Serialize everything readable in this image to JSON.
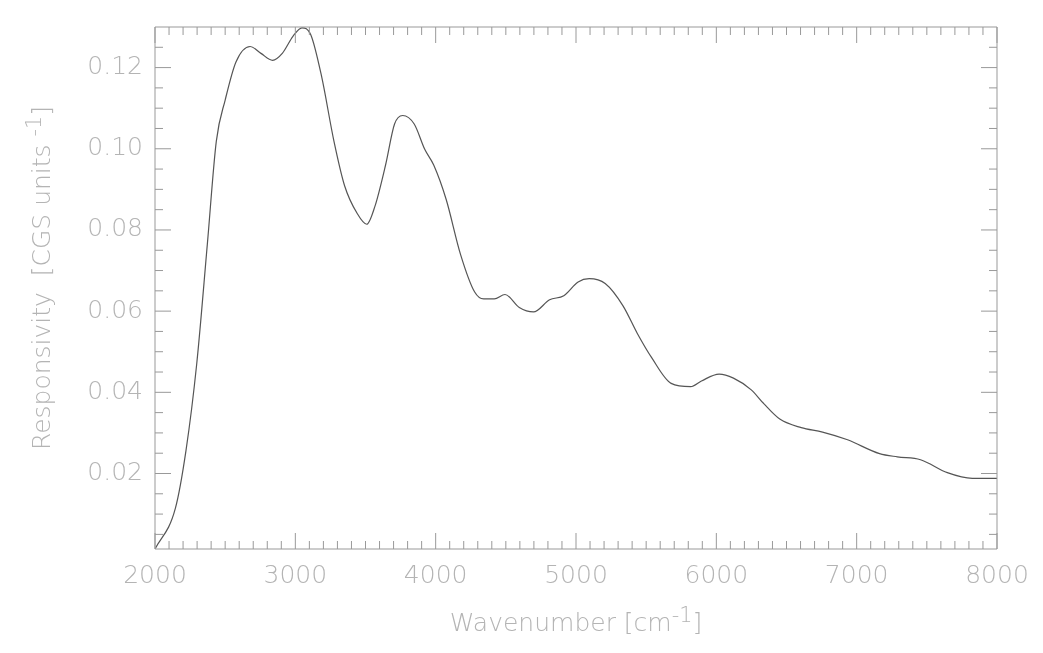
{
  "chart_data": {
    "type": "line",
    "xlabel": "Wavenumber [cm$^{-1}$]",
    "ylabel": "Responsivity  [CGS units $^{-1}$]",
    "x": [
      2000,
      2145,
      2221,
      2297,
      2373,
      2437,
      2500,
      2577,
      2678,
      2755,
      2838,
      2907,
      2983,
      3047,
      3110,
      3186,
      3275,
      3351,
      3440,
      3509,
      3567,
      3643,
      3707,
      3765,
      3847,
      3923,
      3986,
      4075,
      4177,
      4278,
      4342,
      4418,
      4494,
      4596,
      4697,
      4812,
      4913,
      5015,
      5094,
      5208,
      5335,
      5437,
      5538,
      5678,
      5817,
      5894,
      6020,
      6122,
      6249,
      6338,
      6452,
      6605,
      6757,
      6935,
      7163,
      7290,
      7455,
      7646,
      7824,
      8000
    ],
    "series": [
      {
        "color": "#555555",
        "values": [
          0.0014,
          0.0114,
          0.0257,
          0.0469,
          0.0765,
          0.1019,
          0.112,
          0.1214,
          0.1252,
          0.1235,
          0.1218,
          0.1235,
          0.1277,
          0.1298,
          0.1281,
          0.118,
          0.1019,
          0.0909,
          0.0841,
          0.0814,
          0.0858,
          0.096,
          0.1061,
          0.1082,
          0.1061,
          0.0998,
          0.096,
          0.0875,
          0.074,
          0.0647,
          0.063,
          0.063,
          0.0641,
          0.0609,
          0.0598,
          0.0628,
          0.0638,
          0.0672,
          0.068,
          0.0668,
          0.0613,
          0.0545,
          0.0486,
          0.0422,
          0.0414,
          0.0428,
          0.0445,
          0.0435,
          0.0406,
          0.0372,
          0.0334,
          0.0313,
          0.0302,
          0.0283,
          0.0249,
          0.0241,
          0.0234,
          0.0202,
          0.0188,
          0.0188
        ]
      }
    ],
    "xlim": [
      2000,
      8000
    ],
    "ylim": [
      0.0014,
      0.13
    ],
    "xticks": [
      2000,
      {
        "value": 2100,
        "label": null
      },
      {
        "value": 2200,
        "label": null
      },
      {
        "value": 2300,
        "label": null
      },
      {
        "value": 2400,
        "label": null
      },
      {
        "value": 2500,
        "label": null
      },
      {
        "value": 2600,
        "label": null
      },
      {
        "value": 2700,
        "label": null
      },
      {
        "value": 2800,
        "label": null
      },
      {
        "value": 2900,
        "label": null
      },
      3000,
      {
        "value": 3100,
        "label": null
      },
      {
        "value": 3200,
        "label": null
      },
      {
        "value": 3300,
        "label": null
      },
      {
        "value": 3400,
        "label": null
      },
      {
        "value": 3500,
        "label": null
      },
      {
        "value": 3600,
        "label": null
      },
      {
        "value": 3700,
        "label": null
      },
      {
        "value": 3800,
        "label": null
      },
      {
        "value": 3900,
        "label": null
      },
      4000,
      {
        "value": 4100,
        "label": null
      },
      {
        "value": 4200,
        "label": null
      },
      {
        "value": 4300,
        "label": null
      },
      {
        "value": 4400,
        "label": null
      },
      {
        "value": 4500,
        "label": null
      },
      {
        "value": 4600,
        "label": null
      },
      {
        "value": 4700,
        "label": null
      },
      {
        "value": 4800,
        "label": null
      },
      {
        "value": 4900,
        "label": null
      },
      5000,
      {
        "value": 5100,
        "label": null
      },
      {
        "value": 5200,
        "label": null
      },
      {
        "value": 5300,
        "label": null
      },
      {
        "value": 5400,
        "label": null
      },
      {
        "value": 5500,
        "label": null
      },
      {
        "value": 5600,
        "label": null
      },
      {
        "value": 5700,
        "label": null
      },
      {
        "value": 5800,
        "label": null
      },
      {
        "value": 5900,
        "label": null
      },
      6000,
      {
        "value": 6100,
        "label": null
      },
      {
        "value": 6200,
        "label": null
      },
      {
        "value": 6300,
        "label": null
      },
      {
        "value": 6400,
        "label": null
      },
      {
        "value": 6500,
        "label": null
      },
      {
        "value": 6600,
        "label": null
      },
      {
        "value": 6700,
        "label": null
      },
      {
        "value": 6800,
        "label": null
      },
      {
        "value": 6900,
        "label": null
      },
      7000,
      {
        "value": 7100,
        "label": null
      },
      {
        "value": 7200,
        "label": null
      },
      {
        "value": 7300,
        "label": null
      },
      {
        "value": 7400,
        "label": null
      },
      {
        "value": 7500,
        "label": null
      },
      {
        "value": 7600,
        "label": null
      },
      {
        "value": 7700,
        "label": null
      },
      {
        "value": 7800,
        "label": null
      },
      {
        "value": 7900,
        "label": null
      },
      8000
    ],
    "yticks": [
      {
        "value": 0.005,
        "label": null
      },
      {
        "value": 0.01,
        "label": null
      },
      {
        "value": 0.015,
        "label": null
      },
      0.02,
      {
        "value": 0.025,
        "label": null
      },
      {
        "value": 0.03,
        "label": null
      },
      {
        "value": 0.035,
        "label": null
      },
      0.04,
      {
        "value": 0.045,
        "label": null
      },
      {
        "value": 0.05,
        "label": null
      },
      {
        "value": 0.055,
        "label": null
      },
      0.06,
      {
        "value": 0.065,
        "label": null
      },
      {
        "value": 0.07,
        "label": null
      },
      {
        "value": 0.075,
        "label": null
      },
      0.08,
      {
        "value": 0.085,
        "label": null
      },
      {
        "value": 0.09,
        "label": null
      },
      {
        "value": 0.095,
        "label": null
      },
      {
        "value": 0.1,
        "label": "0.10"
      },
      {
        "value": 0.105,
        "label": null
      },
      {
        "value": 0.11,
        "label": null
      },
      {
        "value": 0.115,
        "label": null
      },
      0.12,
      {
        "value": 0.125,
        "label": null
      }
    ],
    "grid": false,
    "legend": false,
    "marker": "none",
    "line_style": "solid"
  }
}
